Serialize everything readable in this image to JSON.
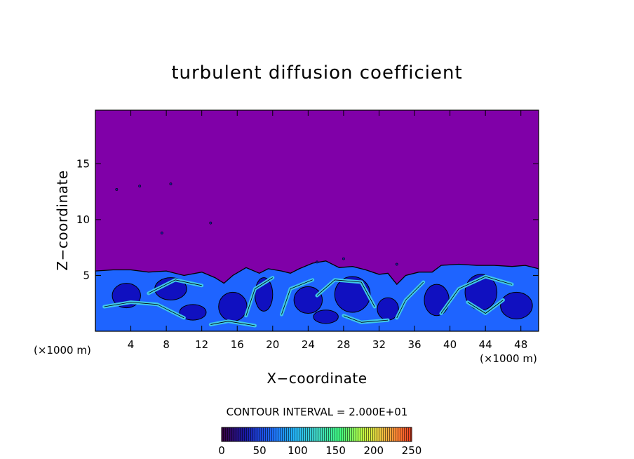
{
  "chart_data": {
    "type": "heatmap",
    "title": "turbulent diffusion coefficient",
    "xlabel": "X−coordinate",
    "ylabel": "Z−coordinate",
    "x_unit_left": "(×1000 m)",
    "x_unit_right": "(×1000 m)",
    "xlim": [
      0,
      50
    ],
    "ylim": [
      0,
      19.8
    ],
    "xticks": [
      4,
      8,
      12,
      16,
      20,
      24,
      28,
      32,
      36,
      40,
      44,
      48
    ],
    "yticks": [
      5,
      10,
      15
    ],
    "contour_interval_label": "CONTOUR INTERVAL = 2.000E+01",
    "colorbar": {
      "min": 0,
      "max": 250,
      "ticks": [
        0,
        50,
        100,
        150,
        200,
        250
      ],
      "colors": [
        "#3a003f",
        "#1a1aa8",
        "#1e64ff",
        "#22b4ff",
        "#40d8c8",
        "#40ff80",
        "#c8ff40",
        "#ffb040",
        "#ff4020"
      ]
    },
    "background_color": "#8000a8",
    "turbulent_layer": {
      "top_height_approx": 5.5,
      "mixed_layer_color": "#1e64ff",
      "core_color": "#1010c0",
      "streak_color": "#40c8e8"
    }
  }
}
